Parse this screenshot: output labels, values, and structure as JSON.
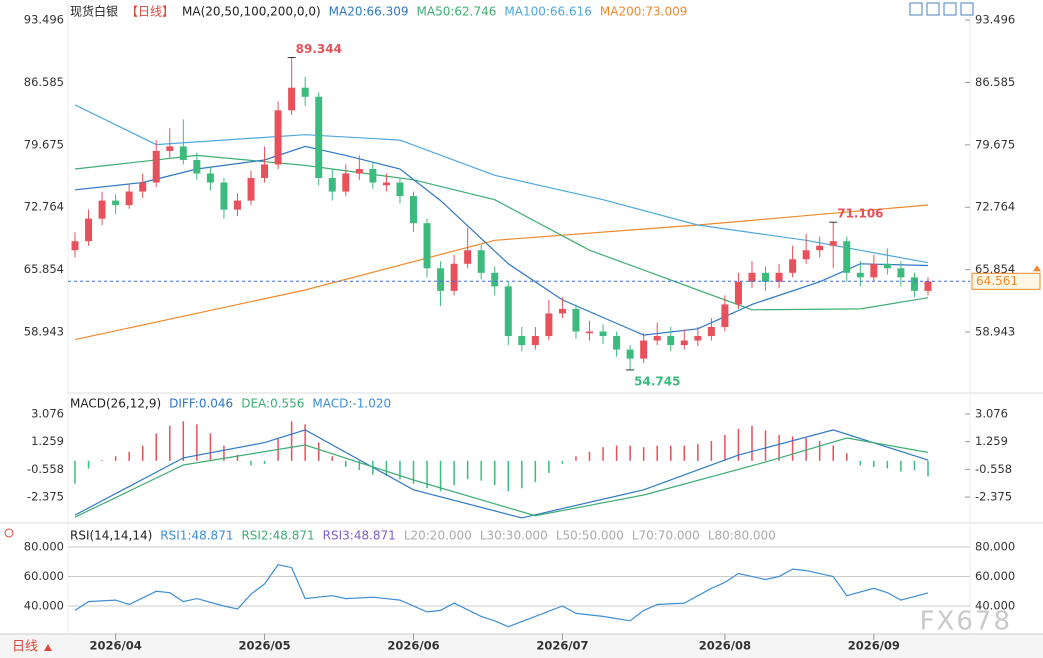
{
  "chart_data": [
    {
      "type": "candlestick",
      "title": "现货白银",
      "period": "【日线】",
      "indicator": "MA(20,50,100,200,0,0)",
      "ylim": [
        52.3,
        94.83
      ],
      "yticks": [
        93.496,
        86.585,
        79.675,
        72.764,
        65.854,
        58.943
      ],
      "up_color": "#e8505b",
      "down_color": "#3dbb7e",
      "xticks": [
        {
          "value": 3,
          "label": "2026/04"
        },
        {
          "value": 14,
          "label": "2026/05"
        },
        {
          "value": 25,
          "label": "2026/06"
        },
        {
          "value": 36,
          "label": "2026/07"
        },
        {
          "value": 48,
          "label": "2026/08"
        },
        {
          "value": 59,
          "label": "2026/09"
        }
      ],
      "candles": [
        [
          68.0,
          70.0,
          67.2,
          69.0
        ],
        [
          69.0,
          72.5,
          68.5,
          71.5
        ],
        [
          71.5,
          74.5,
          70.8,
          73.5
        ],
        [
          73.5,
          74.2,
          72.0,
          73.0
        ],
        [
          73.0,
          75.3,
          72.6,
          74.5
        ],
        [
          74.5,
          76.5,
          73.8,
          75.5
        ],
        [
          75.5,
          80.2,
          75.0,
          79.0
        ],
        [
          79.0,
          81.5,
          78.2,
          79.5
        ],
        [
          79.5,
          82.5,
          77.5,
          78.0
        ],
        [
          78.0,
          78.8,
          75.8,
          76.5
        ],
        [
          76.5,
          77.2,
          74.6,
          75.5
        ],
        [
          75.5,
          76.0,
          71.5,
          72.5
        ],
        [
          72.5,
          74.3,
          71.8,
          73.5
        ],
        [
          73.5,
          76.8,
          73.0,
          76.0
        ],
        [
          76.0,
          79.5,
          75.5,
          77.5
        ],
        [
          77.5,
          84.5,
          77.0,
          83.5
        ],
        [
          83.5,
          89.344,
          83.0,
          86.0
        ],
        [
          86.0,
          87.2,
          84.0,
          85.0
        ],
        [
          85.0,
          85.5,
          75.2,
          76.0
        ],
        [
          76.0,
          77.0,
          73.5,
          74.5
        ],
        [
          74.5,
          77.5,
          74.0,
          76.5
        ],
        [
          76.5,
          78.5,
          75.8,
          77.0
        ],
        [
          77.0,
          77.8,
          74.8,
          75.5
        ],
        [
          75.2,
          76.5,
          74.5,
          75.5
        ],
        [
          75.5,
          76.0,
          73.2,
          74.0
        ],
        [
          74.0,
          74.5,
          70.0,
          71.0
        ],
        [
          71.0,
          71.5,
          65.0,
          66.0
        ],
        [
          66.0,
          66.8,
          61.8,
          63.5
        ],
        [
          63.5,
          67.5,
          63.0,
          66.5
        ],
        [
          66.5,
          70.5,
          66.0,
          68.0
        ],
        [
          68.0,
          68.6,
          64.8,
          65.5
        ],
        [
          65.5,
          66.2,
          63.0,
          64.0
        ],
        [
          64.0,
          64.5,
          57.5,
          58.5
        ],
        [
          58.5,
          59.5,
          56.8,
          57.5
        ],
        [
          57.5,
          59.5,
          57.0,
          58.5
        ],
        [
          58.5,
          62.5,
          58.0,
          61.0
        ],
        [
          61.0,
          62.8,
          60.5,
          61.5
        ],
        [
          61.5,
          62.0,
          58.2,
          59.0
        ],
        [
          58.8,
          60.2,
          58.0,
          59.0
        ],
        [
          59.0,
          59.8,
          57.6,
          58.5
        ],
        [
          58.5,
          59.0,
          56.2,
          57.0
        ],
        [
          57.0,
          57.5,
          54.745,
          56.0
        ],
        [
          56.0,
          58.8,
          55.5,
          58.0
        ],
        [
          58.0,
          60.0,
          57.5,
          58.5
        ],
        [
          58.5,
          59.5,
          56.8,
          57.5
        ],
        [
          57.5,
          59.2,
          57.0,
          58.0
        ],
        [
          58.0,
          59.5,
          57.4,
          58.5
        ],
        [
          58.5,
          60.5,
          58.0,
          59.5
        ],
        [
          59.5,
          63.0,
          59.0,
          62.0
        ],
        [
          62.0,
          65.5,
          61.5,
          64.5
        ],
        [
          64.5,
          66.8,
          63.8,
          65.5
        ],
        [
          65.5,
          66.2,
          63.5,
          64.5
        ],
        [
          64.5,
          66.5,
          63.8,
          65.5
        ],
        [
          65.5,
          68.5,
          65.0,
          67.0
        ],
        [
          67.0,
          69.8,
          66.5,
          68.0
        ],
        [
          68.0,
          69.5,
          67.2,
          68.5
        ],
        [
          68.5,
          71.106,
          66.0,
          69.0
        ],
        [
          69.0,
          69.5,
          64.5,
          65.5
        ],
        [
          65.5,
          66.8,
          64.0,
          65.0
        ],
        [
          65.0,
          67.5,
          64.6,
          66.5
        ],
        [
          66.5,
          68.2,
          65.3,
          66.0
        ],
        [
          66.0,
          66.8,
          64.0,
          65.0
        ],
        [
          65.0,
          65.5,
          62.8,
          63.5
        ],
        [
          63.5,
          65.0,
          63.0,
          64.561
        ]
      ],
      "annotations": [
        16,
        41,
        56
      ],
      "series": [
        {
          "name": "MA20:66.309",
          "color": "#2f78c4",
          "x": [
            0,
            5,
            9,
            14,
            17,
            20,
            24,
            27,
            32,
            36,
            42,
            46,
            50,
            55,
            58,
            63
          ],
          "values": [
            74.7,
            75.5,
            77,
            78,
            79.5,
            78.5,
            77,
            73.5,
            66.5,
            62.5,
            58.6,
            59.3,
            62,
            64.5,
            66.5,
            66.309
          ]
        },
        {
          "name": "MA50:62.746",
          "color": "#3fae74",
          "x": [
            0,
            9,
            17,
            25,
            31,
            38,
            46,
            50,
            58,
            63
          ],
          "values": [
            77,
            78.5,
            77.4,
            75.8,
            73.6,
            68,
            63.6,
            61.4,
            61.5,
            62.746
          ]
        },
        {
          "name": "MA100:66.616",
          "color": "#4fa8de",
          "x": [
            0,
            6,
            17,
            24,
            31,
            39,
            46,
            54,
            63
          ],
          "values": [
            84.1,
            79.7,
            80.8,
            80.2,
            76.3,
            73.6,
            70.8,
            69.1,
            66.616
          ]
        },
        {
          "name": "MA200:73.009",
          "color": "#f0892c",
          "x": [
            0,
            17,
            31,
            46,
            63
          ],
          "values": [
            58.1,
            63.6,
            69.1,
            70.8,
            73.009
          ]
        }
      ]
    },
    {
      "type": "macd",
      "title": "MACD(26,12,9)",
      "ylim": [
        -3.885,
        4.127
      ],
      "yticks": [
        3.076,
        1.259,
        -0.558,
        -2.375
      ],
      "histogram": {
        "name": "MACD:-1.020",
        "up_color": "#e8505b",
        "down_color": "#3dbb7e",
        "values": [
          -1.5,
          -0.5,
          0.05,
          0.3,
          0.6,
          1.0,
          1.8,
          2.3,
          2.6,
          2.4,
          1.8,
          1.0,
          0.4,
          -0.3,
          -0.2,
          1.5,
          2.6,
          2.4,
          1.2,
          0.3,
          -0.4,
          -0.6,
          -0.9,
          -1.0,
          -1.2,
          -1.5,
          -1.8,
          -2.0,
          -1.6,
          -1.2,
          -1.3,
          -1.6,
          -2.0,
          -1.8,
          -1.4,
          -0.8,
          -0.2,
          0.3,
          0.6,
          0.9,
          1.0,
          1.0,
          0.9,
          1.0,
          1.0,
          1.0,
          1.1,
          1.3,
          1.7,
          2.1,
          2.3,
          2.0,
          1.7,
          1.6,
          1.5,
          1.3,
          1.0,
          0.5,
          -0.3,
          -0.4,
          -0.5,
          -0.7,
          -0.6,
          -1.02
        ]
      },
      "series": [
        {
          "name": "DIFF:0.046",
          "color": "#2f78c4",
          "x": [
            0,
            8,
            14,
            17,
            25,
            33,
            42,
            49,
            56,
            63
          ],
          "values": [
            -3.56,
            0.19,
            1.2,
            2.03,
            -1.9,
            -3.75,
            -1.9,
            0.38,
            2.03,
            0.046
          ]
        },
        {
          "name": "DEA:0.556",
          "color": "#3fae74",
          "x": [
            0,
            8,
            17,
            25,
            34,
            42,
            51,
            57,
            63
          ],
          "values": [
            -3.7,
            -0.27,
            1.04,
            -1.26,
            -3.6,
            -2.24,
            -0.08,
            1.5,
            0.556
          ]
        }
      ]
    },
    {
      "type": "rsi",
      "title": "RSI(14,14,14)",
      "ylim": [
        22.4,
        91.5
      ],
      "yticks": [
        {
          "value": 80,
          "label": "80.000"
        },
        {
          "value": 60,
          "label": "60.000"
        },
        {
          "value": 40,
          "label": "40.000"
        }
      ],
      "grid": true,
      "legend": [
        "RSI2:48.871",
        "RSI3:48.871",
        "L20:20.000",
        "L30:30.000",
        "L50:50.000",
        "L70:70.000",
        "L80:80.000"
      ],
      "series": [
        {
          "name": "RSI1:48.871",
          "color": "#3d8ed6",
          "x": [
            0,
            1,
            3,
            4,
            6,
            7,
            8,
            9,
            11,
            12,
            13,
            14,
            15,
            16,
            17,
            19,
            20,
            22,
            24,
            26,
            27,
            28,
            30,
            31,
            32,
            34,
            36,
            37,
            39,
            41,
            42,
            43,
            45,
            47,
            48,
            49,
            51,
            52,
            53,
            54,
            56,
            57,
            59,
            60,
            61,
            63
          ],
          "values": [
            37,
            43,
            44,
            41,
            50,
            49,
            43,
            45,
            40,
            38,
            48,
            55,
            68,
            66,
            45,
            47,
            45,
            46,
            44,
            36,
            37,
            42,
            33,
            30,
            26,
            33,
            40,
            35,
            33,
            30,
            37,
            41,
            42,
            52,
            56,
            62,
            58,
            60,
            65,
            64,
            60,
            47,
            52,
            49,
            44,
            48.871
          ]
        }
      ]
    }
  ],
  "ui": {
    "period_button": "日线",
    "watermark": "FX678"
  }
}
